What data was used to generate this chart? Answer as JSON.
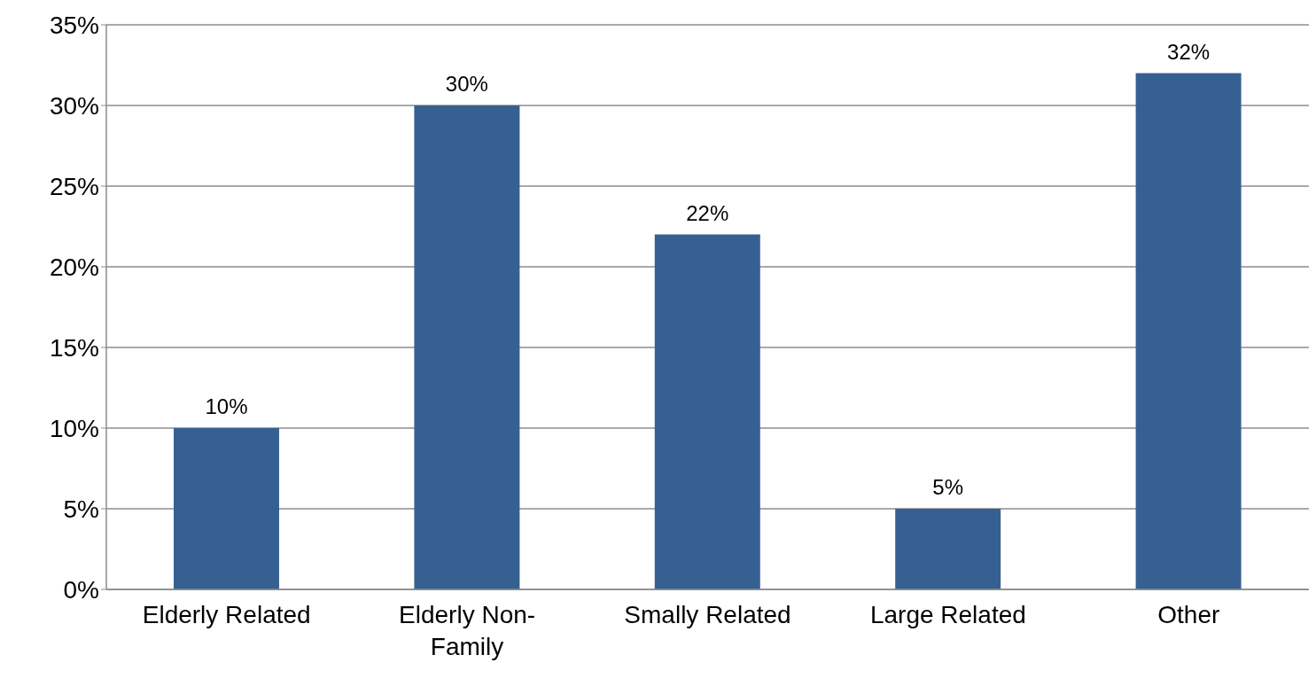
{
  "chart_data": {
    "type": "bar",
    "categories": [
      "Elderly Related",
      "Elderly Non-Family",
      "Smally Related",
      "Large Related",
      "Other"
    ],
    "values": [
      10,
      30,
      22,
      5,
      32
    ],
    "value_labels": [
      "10%",
      "30%",
      "22%",
      "5%",
      "32%"
    ],
    "color": "#376092",
    "ylim": [
      0,
      35
    ],
    "yticks": [
      {
        "value": 0,
        "label": "0%"
      },
      {
        "value": 5,
        "label": "5%"
      },
      {
        "value": 10,
        "label": "10%"
      },
      {
        "value": 15,
        "label": "15%"
      },
      {
        "value": 20,
        "label": "20%"
      },
      {
        "value": 25,
        "label": "25%"
      },
      {
        "value": 30,
        "label": "30%"
      },
      {
        "value": 35,
        "label": "35%"
      }
    ],
    "grid": "y",
    "legend": false
  }
}
